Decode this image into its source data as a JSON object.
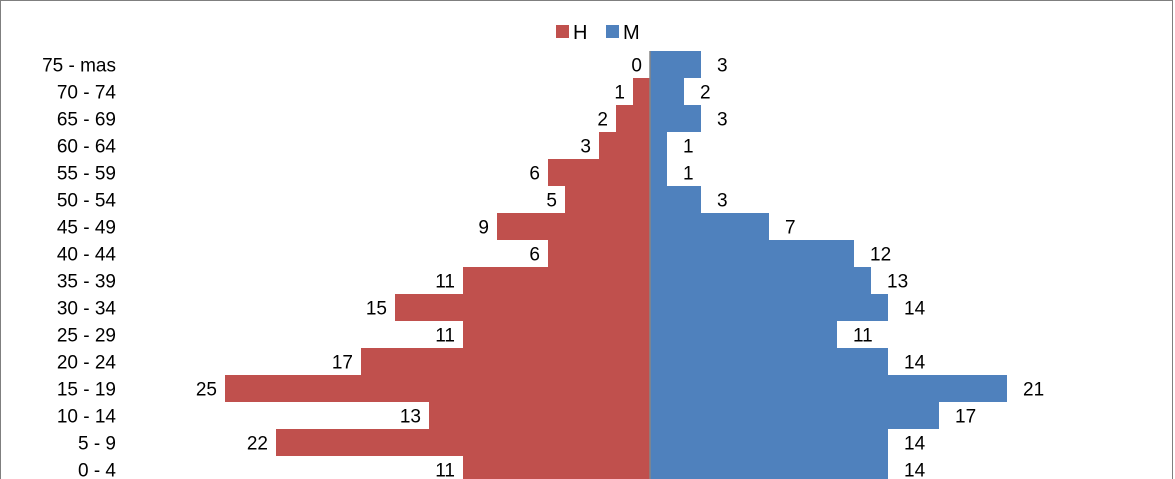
{
  "chart_data": {
    "type": "bar",
    "orientation": "horizontal-diverging",
    "categories": [
      "75 - mas",
      "70 - 74",
      "65 - 69",
      "60 - 64",
      "55 - 59",
      "50 - 54",
      "45 - 49",
      "40 - 44",
      "35 - 39",
      "30 - 34",
      "25 - 29",
      "20 - 24",
      "15 - 19",
      "10 - 14",
      "5 - 9",
      "0 - 4"
    ],
    "series": [
      {
        "name": "H",
        "color": "#c0504d",
        "values": [
          0,
          1,
          2,
          3,
          6,
          5,
          9,
          6,
          11,
          15,
          11,
          17,
          25,
          13,
          22,
          11
        ]
      },
      {
        "name": "M",
        "color": "#4f81bd",
        "values": [
          3,
          2,
          3,
          1,
          1,
          3,
          7,
          12,
          13,
          14,
          11,
          14,
          21,
          17,
          14,
          14
        ]
      }
    ],
    "title": "",
    "xlabel": "",
    "ylabel": "",
    "legend_position": "top",
    "grid": false,
    "data_labels": true
  }
}
